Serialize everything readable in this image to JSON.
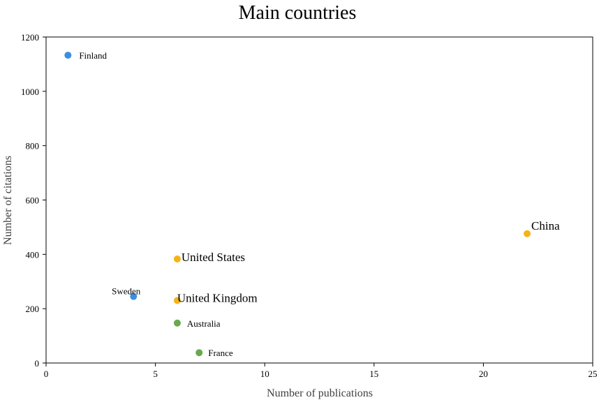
{
  "chart_data": {
    "type": "scatter",
    "title": "Main countries",
    "xlabel": "Number of publications",
    "ylabel": "Number of citations",
    "xlim": [
      0,
      25
    ],
    "ylim": [
      0,
      1200
    ],
    "xticks": [
      0,
      5,
      10,
      15,
      20,
      25
    ],
    "yticks": [
      0,
      200,
      400,
      600,
      800,
      1000,
      1200
    ],
    "grid": false,
    "points": [
      {
        "label": "Finland",
        "x": 1,
        "y": 1133,
        "color": "#3b8fe0"
      },
      {
        "label": "Sweden",
        "x": 4,
        "y": 245,
        "color": "#3b8fe0"
      },
      {
        "label": "United States",
        "x": 6,
        "y": 383,
        "color": "#f5b316"
      },
      {
        "label": "United Kingdom",
        "x": 6,
        "y": 230,
        "color": "#f5b316"
      },
      {
        "label": "China",
        "x": 22,
        "y": 476,
        "color": "#f5b316"
      },
      {
        "label": "Australia",
        "x": 6,
        "y": 147,
        "color": "#6aa84f"
      },
      {
        "label": "France",
        "x": 7,
        "y": 38,
        "color": "#6aa84f"
      }
    ]
  }
}
